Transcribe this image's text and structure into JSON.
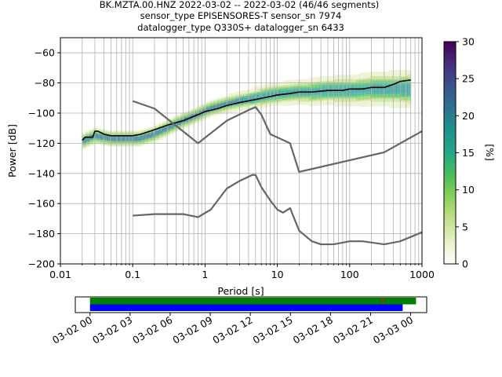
{
  "chart_data": [
    {
      "type": "heatmap",
      "title_lines": [
        "BK.MZTA.00.HNZ   2022-03-02 -- 2022-03-02  (46/46 segments)",
        "sensor_type EPISENSORES-T sensor_sn 7974",
        "datalogger_type Q330S+ datalogger_sn 6433"
      ],
      "xlabel": "Period [s]",
      "ylabel": "Power [dB]",
      "x_scale": "log",
      "xlim": [
        0.01,
        1000
      ],
      "ylim": [
        -200,
        -50
      ],
      "x_tick_labels": [
        "0.01",
        "0.1",
        "1",
        "10",
        "100",
        "1000"
      ],
      "y_ticks": [
        -60,
        -80,
        -100,
        -120,
        -140,
        -160,
        -180,
        -200
      ],
      "grid": true,
      "colorbar": {
        "label": "[%]",
        "range": [
          0,
          30
        ],
        "ticks": [
          0,
          5,
          10,
          15,
          20,
          25,
          30
        ],
        "colors": [
          "#ffffff",
          "#e6f0c8",
          "#c2df8c",
          "#8ccf5a",
          "#4cbb5c",
          "#22a884",
          "#21918c",
          "#2c728e",
          "#3b528b",
          "#472d7b",
          "#440154"
        ]
      },
      "density_band": {
        "x": [
          0.02,
          0.03,
          0.05,
          0.08,
          0.12,
          0.2,
          0.3,
          0.5,
          0.8,
          1.2,
          2,
          3,
          5,
          8,
          12,
          20,
          30,
          50,
          80,
          120,
          200,
          300,
          500,
          700
        ],
        "y": [
          -119,
          -115,
          -117,
          -117,
          -117,
          -114,
          -110,
          -105,
          -101,
          -97,
          -94,
          -92,
          -90,
          -88,
          -87,
          -86,
          -86,
          -85,
          -85,
          -85,
          -84,
          -84,
          -84,
          -84
        ]
      },
      "series": [
        {
          "name": "",
          "color": "#000000",
          "x": [
            0.02,
            0.022,
            0.025,
            0.028,
            0.03,
            0.033,
            0.04,
            0.05,
            0.07,
            0.1,
            0.13,
            0.2,
            0.3,
            0.5,
            0.8,
            1,
            1.5,
            2,
            3,
            5,
            8,
            10,
            15,
            20,
            30,
            50,
            80,
            100,
            150,
            200,
            300,
            400,
            500,
            700
          ],
          "y": [
            -118,
            -116,
            -116,
            -116,
            -112,
            -112,
            -114,
            -115,
            -115,
            -115,
            -114,
            -111,
            -108,
            -105,
            -101,
            -99,
            -97,
            -95,
            -93,
            -91,
            -89,
            -88,
            -87,
            -86,
            -86,
            -85,
            -85,
            -84,
            -84,
            -83,
            -83,
            -81,
            -79,
            -78
          ]
        },
        {
          "name": "",
          "color": "#666666",
          "x": [
            0.1,
            0.2,
            0.8,
            2,
            4,
            5,
            6,
            8,
            15,
            20,
            300,
            1000
          ],
          "y": [
            -92,
            -97,
            -120,
            -105,
            -98,
            -96,
            -101,
            -114,
            -120,
            -139,
            -126,
            -112
          ]
        },
        {
          "name": "",
          "color": "#666666",
          "x": [
            0.1,
            0.2,
            0.5,
            0.8,
            1.2,
            2,
            3,
            4.5,
            5,
            6,
            8,
            10,
            12,
            15,
            20,
            30,
            40,
            60,
            100,
            150,
            300,
            500,
            1000
          ],
          "y": [
            -168,
            -167,
            -167,
            -169,
            -164,
            -150,
            -145,
            -141,
            -141,
            -149,
            -158,
            -164,
            -166,
            -163,
            -178,
            -185,
            -187,
            -187,
            -185,
            -185,
            -187,
            -185,
            -179
          ]
        }
      ]
    },
    {
      "type": "timeline",
      "x_tick_labels": [
        "03-02 00",
        "03-02 03",
        "03-02 06",
        "03-02 09",
        "03-02 12",
        "03-02 15",
        "03-02 18",
        "03-02 21",
        "03-03 00"
      ],
      "x_range_hours": [
        -1.1,
        25.2
      ],
      "bars": [
        {
          "color": "#008000",
          "start_hours": 0,
          "end_hours": 24.4
        },
        {
          "color": "#0000ff",
          "start_hours": 0,
          "end_hours": 23.4
        }
      ],
      "marker": {
        "color": "#ff0000",
        "hours": 21.9
      }
    }
  ]
}
